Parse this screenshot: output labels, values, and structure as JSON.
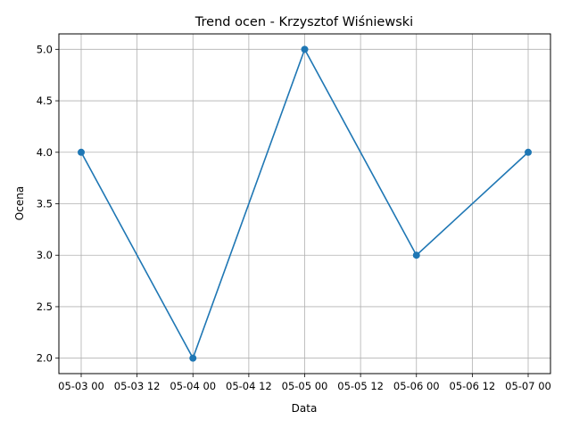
{
  "chart_data": {
    "type": "line",
    "title": "Trend ocen - Krzysztof Wiśniewski",
    "xlabel": "Data",
    "ylabel": "Ocena",
    "x": [
      "05-03 00",
      "05-04 00",
      "05-05 00",
      "05-06 00",
      "05-07 00"
    ],
    "series": [
      {
        "values": [
          4.0,
          2.0,
          5.0,
          3.0,
          4.0
        ]
      }
    ],
    "x_tick_labels": [
      "05-03 00",
      "05-03 12",
      "05-04 00",
      "05-04 12",
      "05-05 00",
      "05-05 12",
      "05-06 00",
      "05-06 12",
      "05-07 00"
    ],
    "y_tick_labels": [
      "2.0",
      "2.5",
      "3.0",
      "3.5",
      "4.0",
      "4.5",
      "5.0"
    ],
    "ylim": [
      1.85,
      5.15
    ],
    "grid": true,
    "marker": "circle",
    "line_color": "#1f77b4"
  }
}
